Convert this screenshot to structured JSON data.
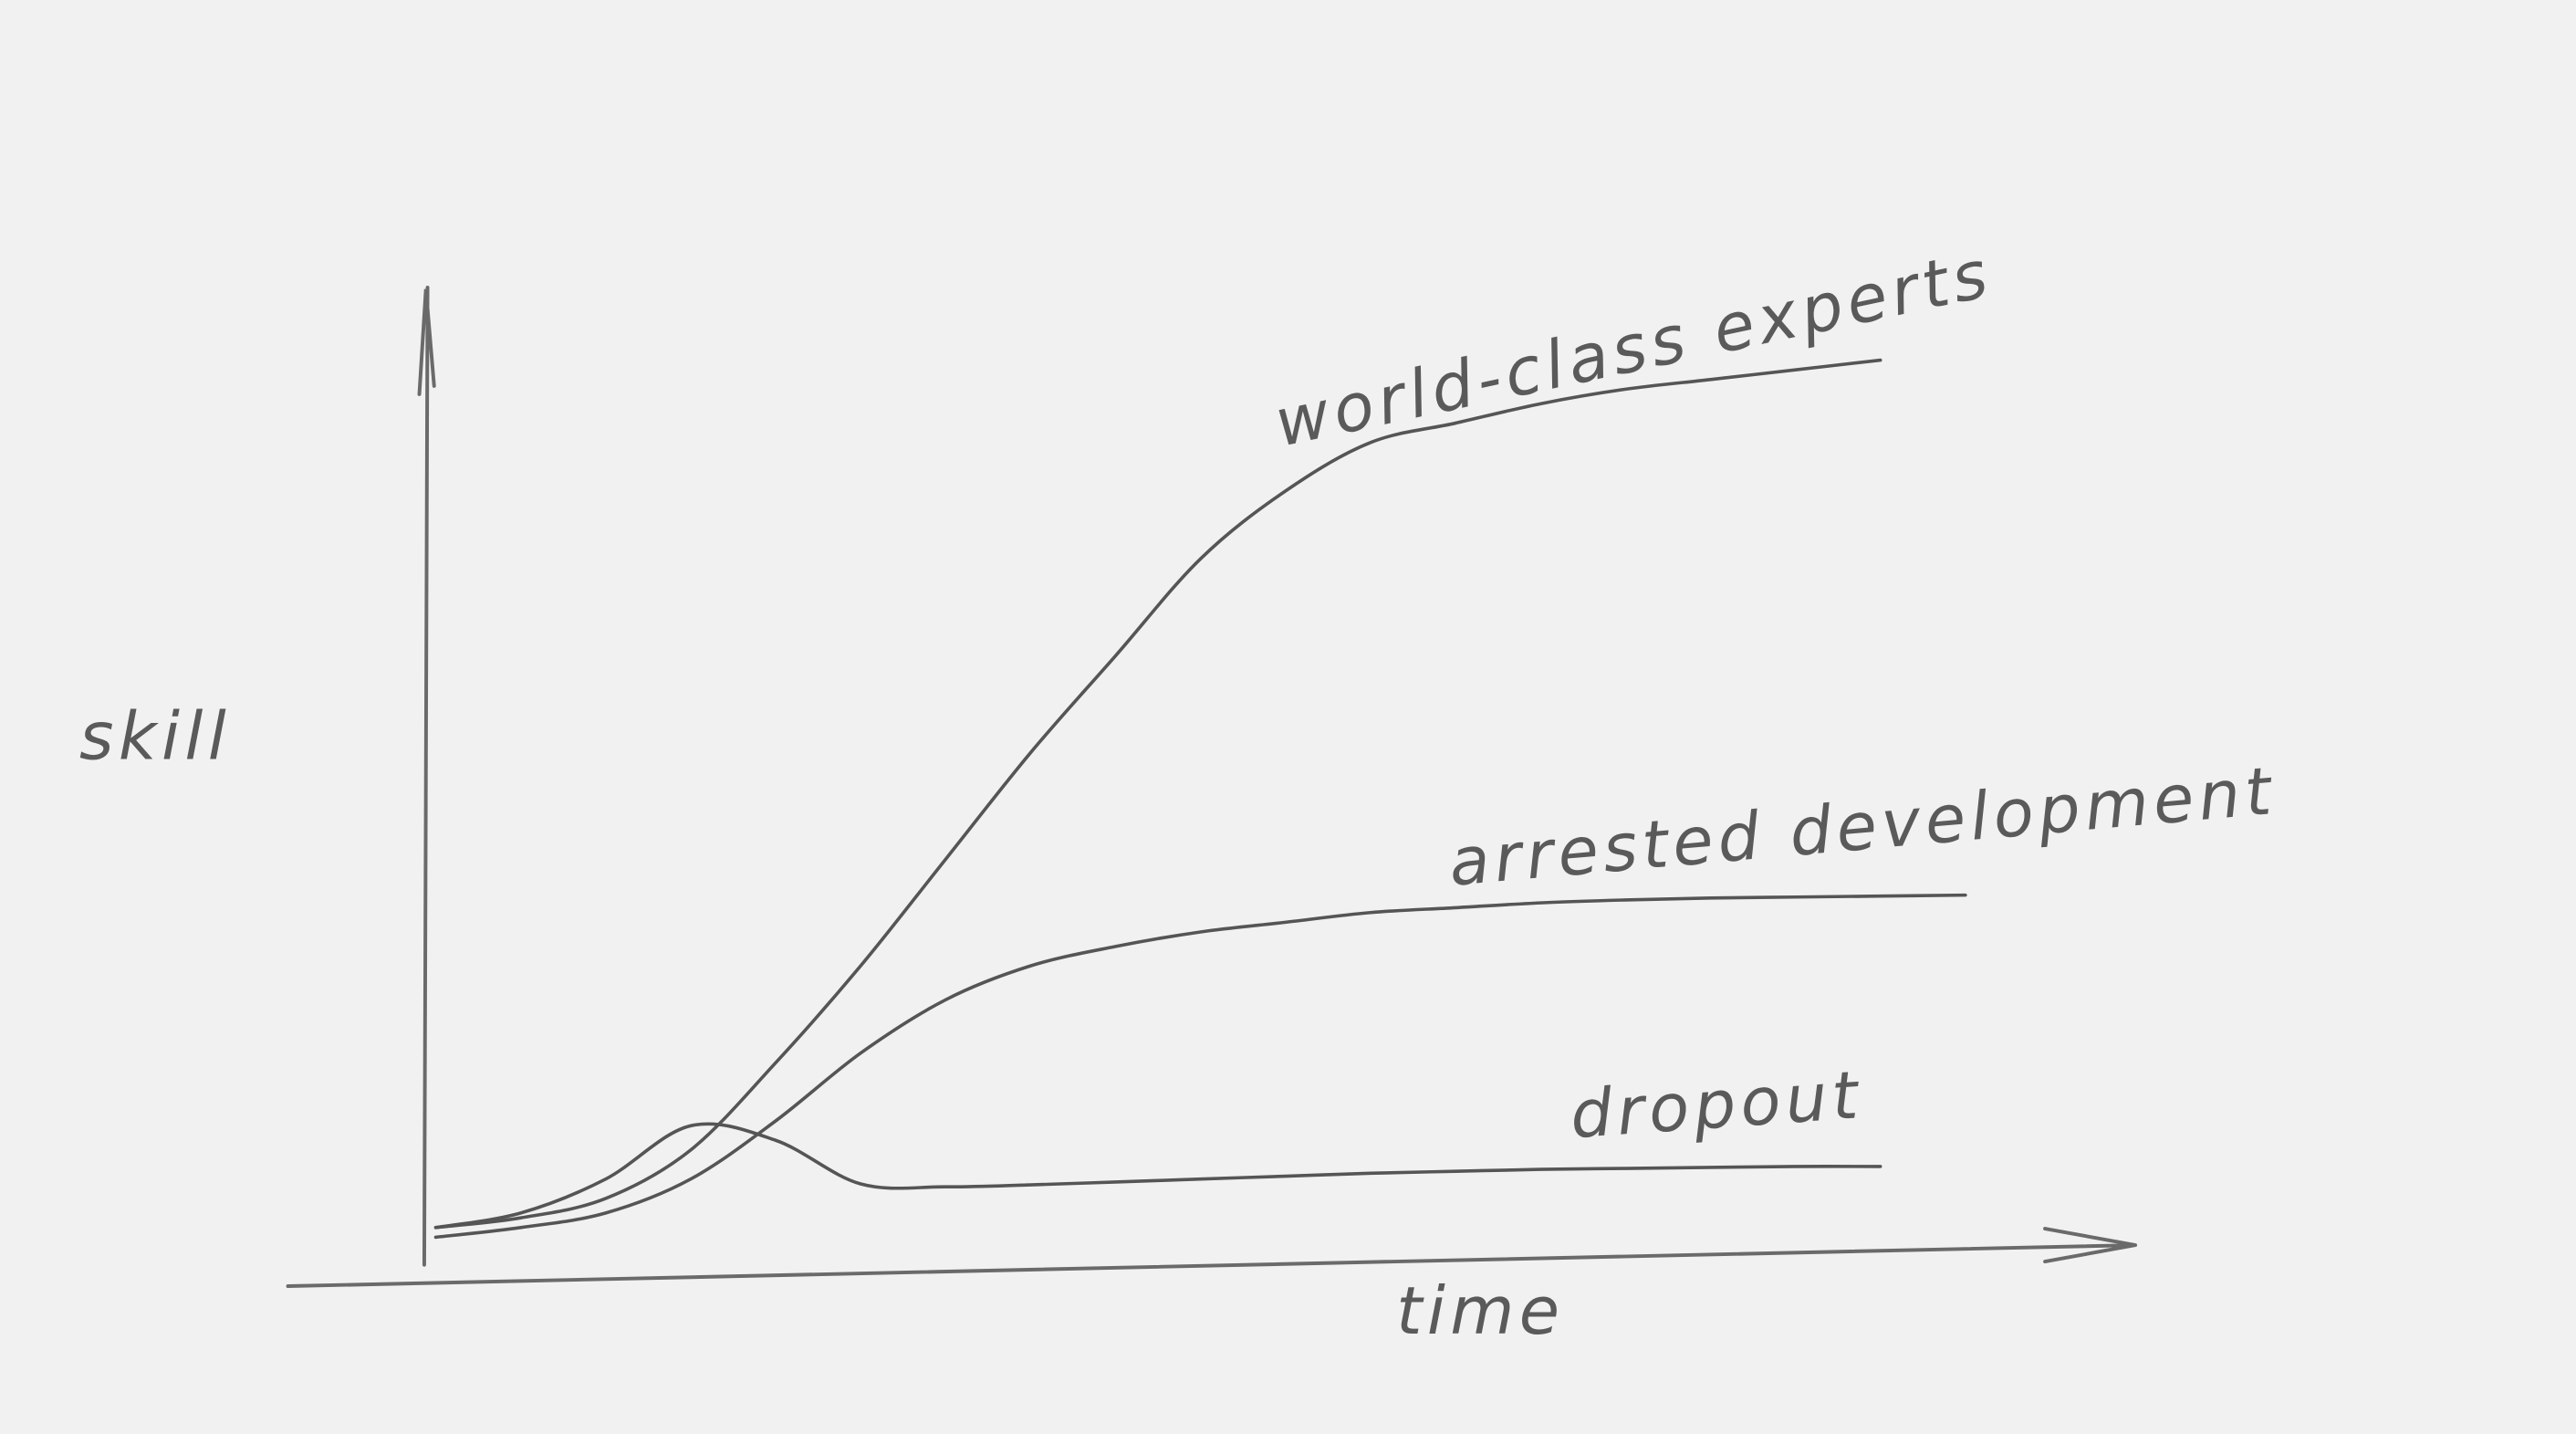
{
  "chart_data": {
    "type": "line",
    "xlabel": "time",
    "ylabel": "skill",
    "x": [
      0,
      0.5,
      1,
      1.5,
      2,
      2.5,
      3,
      3.5,
      4,
      4.5,
      5,
      5.5,
      6,
      6.5,
      7,
      7.5,
      8,
      8.5,
      9
    ],
    "xlim": [
      0,
      10
    ],
    "ylim": [
      0,
      10
    ],
    "grid": false,
    "series": [
      {
        "name": "world-class experts",
        "color": "#555555",
        "values": [
          0.3,
          0.4,
          0.6,
          1.1,
          2.0,
          3.0,
          4.1,
          5.2,
          6.2,
          7.2,
          7.9,
          8.4,
          8.6,
          8.8,
          8.95,
          9.05,
          9.15,
          9.25,
          null
        ]
      },
      {
        "name": "arrested development",
        "color": "#555555",
        "values": [
          0.2,
          0.3,
          0.45,
          0.8,
          1.4,
          2.1,
          2.65,
          3.0,
          3.2,
          3.35,
          3.45,
          3.55,
          3.6,
          3.65,
          3.68,
          3.7,
          3.71,
          3.72,
          3.73
        ]
      },
      {
        "name": "dropout",
        "color": "#555555",
        "values": [
          0.3,
          0.45,
          0.8,
          1.35,
          1.2,
          0.75,
          0.72,
          0.74,
          0.77,
          0.8,
          0.83,
          0.86,
          0.88,
          0.9,
          0.91,
          0.92,
          0.93,
          0.93,
          null
        ]
      }
    ]
  }
}
